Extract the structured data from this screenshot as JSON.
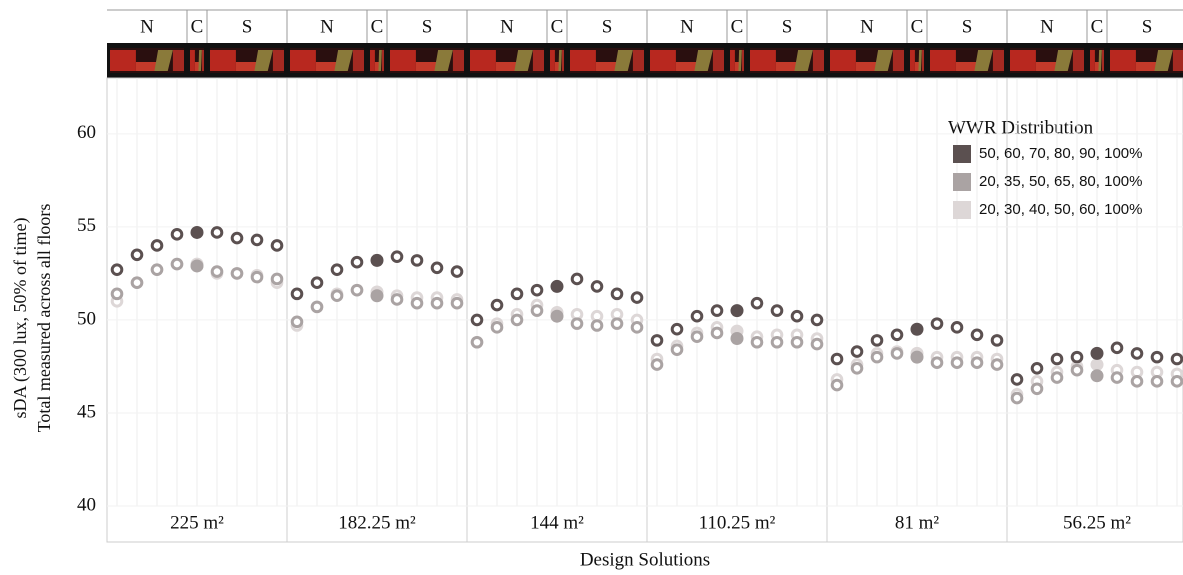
{
  "chart_data": {
    "type": "scatter",
    "x_label": "Design Solutions",
    "y_label": [
      "sDA (300 lux, 50% of time)",
      "Total measured across all floors"
    ],
    "legend_title": "WWR Distribution",
    "legend_position": "upper right",
    "groups": [
      "225 m²",
      "182.25 m²",
      "144 m²",
      "110.25 m²",
      "81 m²",
      "56.25 m²"
    ],
    "sections": [
      {
        "label": "N",
        "columns": 4,
        "marker": "ring"
      },
      {
        "label": "C",
        "columns": 1,
        "marker": "dot"
      },
      {
        "label": "S",
        "columns": 4,
        "marker": "ring"
      }
    ],
    "ylim": [
      40,
      63
    ],
    "yticks": [
      40,
      45,
      50,
      55,
      60
    ],
    "grid": true,
    "series": [
      {
        "name": "50, 60, 70, 80, 90, 100%",
        "color": "#5b5050",
        "values": [
          52.7,
          53.5,
          54.0,
          54.6,
          54.7,
          54.7,
          54.4,
          54.3,
          54.0,
          51.4,
          52.0,
          52.7,
          53.1,
          53.2,
          53.4,
          53.2,
          52.8,
          52.6,
          50.0,
          50.8,
          51.4,
          51.6,
          51.8,
          52.2,
          51.8,
          51.4,
          51.2,
          48.9,
          49.5,
          50.2,
          50.5,
          50.5,
          50.9,
          50.5,
          50.2,
          50.0,
          47.9,
          48.3,
          48.9,
          49.2,
          49.5,
          49.8,
          49.6,
          49.2,
          48.9,
          46.8,
          47.4,
          47.9,
          48.0,
          48.2,
          48.5,
          48.2,
          48.0,
          47.9
        ]
      },
      {
        "name": "20, 35, 50, 65, 80, 100%",
        "color": "#aaa3a3",
        "values": [
          51.4,
          52.0,
          52.7,
          53.0,
          52.9,
          52.6,
          52.5,
          52.3,
          52.2,
          49.9,
          50.7,
          51.3,
          51.6,
          51.3,
          51.1,
          50.9,
          50.9,
          50.9,
          48.8,
          49.6,
          50.0,
          50.5,
          50.2,
          49.8,
          49.7,
          49.8,
          49.6,
          47.6,
          48.4,
          49.1,
          49.3,
          49.0,
          48.8,
          48.8,
          48.8,
          48.7,
          46.5,
          47.4,
          48.0,
          48.2,
          48.0,
          47.7,
          47.7,
          47.7,
          47.6,
          45.8,
          46.3,
          46.9,
          47.3,
          47.0,
          46.9,
          46.7,
          46.7,
          46.7
        ]
      },
      {
        "name": "20, 30, 40, 50, 60, 100%",
        "color": "#ddd7d7",
        "values": [
          51.0,
          52.0,
          52.7,
          53.0,
          53.0,
          52.5,
          52.5,
          52.4,
          52.0,
          49.7,
          50.7,
          51.4,
          51.6,
          51.5,
          51.3,
          51.2,
          51.2,
          51.1,
          48.8,
          49.8,
          50.3,
          50.8,
          50.4,
          50.3,
          50.2,
          50.3,
          50.0,
          47.9,
          48.6,
          49.3,
          49.6,
          49.4,
          49.1,
          49.2,
          49.2,
          49.0,
          46.8,
          47.6,
          48.2,
          48.3,
          48.2,
          48.0,
          48.0,
          48.0,
          47.9,
          46.0,
          46.7,
          47.2,
          47.5,
          47.6,
          47.3,
          47.2,
          47.2,
          47.1
        ]
      }
    ]
  }
}
